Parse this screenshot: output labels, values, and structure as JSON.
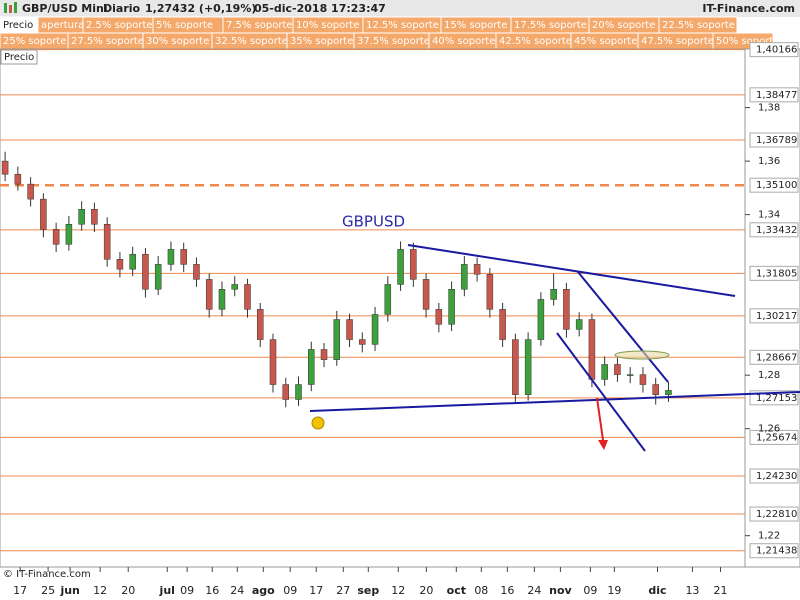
{
  "chart_data": {
    "type": "candlestick",
    "title": "GBP/USD Mini",
    "period": "Diario",
    "last_price": "1,27432 (+0,19%)",
    "datetime": "05-dic-2018 17:23:47",
    "site": "IT-Finance.com",
    "watermark": "© IT-Finance.com",
    "annotation": "GBPUSD",
    "price_tab": "Precio",
    "tabs": [
      [
        "Precio",
        "apertura",
        "2.5% soporte",
        "5% soporte",
        "7.5% soporte",
        "10% soporte",
        "12.5% soporte",
        "15% soporte",
        "17.5% soporte",
        "20% soporte",
        "22.5% soporte"
      ],
      [
        "25% soporte",
        "27.5% soporte",
        "30% soporte",
        "32.5% soporte",
        "35% soporte",
        "37.5% soporte",
        "40% soporte",
        "42.5% soporte",
        "45% soporte",
        "47.5% soporte",
        "50% soporte"
      ]
    ],
    "up_color": "#3ca03c",
    "down_color": "#c8584e",
    "level_color": "#ef8a4c",
    "ylim": [
      1.2083,
      1.4019
    ],
    "xlim": [
      -0.4,
      58.0
    ],
    "yticks": [
      {
        "value": 1.38,
        "label": "1,38"
      },
      {
        "value": 1.36,
        "label": "1,36"
      },
      {
        "value": 1.34,
        "label": "1,34"
      },
      {
        "value": 1.28,
        "label": "1,28"
      },
      {
        "value": 1.26,
        "label": "1,26"
      },
      {
        "value": 1.22,
        "label": "1,22"
      }
    ],
    "levels": [
      {
        "value": 1.40166,
        "label": "1,40166"
      },
      {
        "value": 1.38477,
        "label": "1,38477"
      },
      {
        "value": 1.36789,
        "label": "1,36789"
      },
      {
        "value": 1.351,
        "label": "1,35100",
        "dashed": true
      },
      {
        "value": 1.33432,
        "label": "1,33432"
      },
      {
        "value": 1.31805,
        "label": "1,31805"
      },
      {
        "value": 1.30217,
        "label": "1,30217"
      },
      {
        "value": 1.28667,
        "label": "1,28667"
      },
      {
        "value": 1.27153,
        "label": "1,27153"
      },
      {
        "value": 1.25674,
        "label": "1,25674"
      },
      {
        "value": 1.2423,
        "label": "1,24230"
      },
      {
        "value": 1.2281,
        "label": "1,22810"
      },
      {
        "value": 1.21438,
        "label": "1,21438"
      }
    ],
    "xticks": [
      {
        "value": 1.18,
        "label": "17"
      },
      {
        "value": 3.37,
        "label": "25"
      },
      {
        "value": 5.1,
        "label": "jun",
        "bold": true
      },
      {
        "value": 7.45,
        "label": "12"
      },
      {
        "value": 9.65,
        "label": "20"
      },
      {
        "value": 12.71,
        "label": "jul",
        "bold": true
      },
      {
        "value": 14.27,
        "label": "09"
      },
      {
        "value": 16.24,
        "label": "16"
      },
      {
        "value": 18.2,
        "label": "24"
      },
      {
        "value": 20.24,
        "label": "ago",
        "bold": true
      },
      {
        "value": 22.35,
        "label": "09"
      },
      {
        "value": 24.39,
        "label": "17"
      },
      {
        "value": 26.51,
        "label": "27"
      },
      {
        "value": 28.47,
        "label": "sep",
        "bold": true
      },
      {
        "value": 30.82,
        "label": "12"
      },
      {
        "value": 33.02,
        "label": "20"
      },
      {
        "value": 35.37,
        "label": "oct",
        "bold": true
      },
      {
        "value": 37.33,
        "label": "08"
      },
      {
        "value": 39.37,
        "label": "16"
      },
      {
        "value": 41.49,
        "label": "24"
      },
      {
        "value": 43.53,
        "label": "nov",
        "bold": true
      },
      {
        "value": 45.88,
        "label": "09"
      },
      {
        "value": 47.76,
        "label": "19"
      },
      {
        "value": 51.14,
        "label": "dic",
        "bold": true
      },
      {
        "value": 53.88,
        "label": "13"
      },
      {
        "value": 56.08,
        "label": "21"
      }
    ],
    "ohlc": [
      [
        1.36,
        1.3635,
        1.3525,
        1.3551
      ],
      [
        1.3551,
        1.358,
        1.349,
        1.3514
      ],
      [
        1.3514,
        1.354,
        1.343,
        1.3458
      ],
      [
        1.3458,
        1.348,
        1.3315,
        1.3345
      ],
      [
        1.3345,
        1.337,
        1.326,
        1.3289
      ],
      [
        1.3289,
        1.3395,
        1.3265,
        1.3364
      ],
      [
        1.3364,
        1.345,
        1.334,
        1.342
      ],
      [
        1.342,
        1.3445,
        1.3335,
        1.3364
      ],
      [
        1.3364,
        1.339,
        1.3205,
        1.3233
      ],
      [
        1.3233,
        1.326,
        1.3165,
        1.3196
      ],
      [
        1.3196,
        1.328,
        1.317,
        1.3252
      ],
      [
        1.3252,
        1.3275,
        1.309,
        1.3121
      ],
      [
        1.3121,
        1.3245,
        1.31,
        1.3214
      ],
      [
        1.3214,
        1.33,
        1.319,
        1.327
      ],
      [
        1.327,
        1.3295,
        1.3185,
        1.3214
      ],
      [
        1.3214,
        1.324,
        1.313,
        1.3158
      ],
      [
        1.3158,
        1.318,
        1.3015,
        1.3046
      ],
      [
        1.3046,
        1.315,
        1.302,
        1.3121
      ],
      [
        1.3121,
        1.317,
        1.3095,
        1.3139
      ],
      [
        1.3139,
        1.316,
        1.3015,
        1.3046
      ],
      [
        1.3046,
        1.307,
        1.2905,
        1.2933
      ],
      [
        1.2933,
        1.2955,
        1.2735,
        1.2765
      ],
      [
        1.2765,
        1.279,
        1.268,
        1.2709
      ],
      [
        1.2709,
        1.2795,
        1.2685,
        1.2765
      ],
      [
        1.2765,
        1.2925,
        1.274,
        1.2896
      ],
      [
        1.2896,
        1.292,
        1.283,
        1.2858
      ],
      [
        1.2858,
        1.304,
        1.2835,
        1.3008
      ],
      [
        1.3008,
        1.303,
        1.2905,
        1.2933
      ],
      [
        1.2933,
        1.296,
        1.2885,
        1.2915
      ],
      [
        1.2915,
        1.3055,
        1.289,
        1.3027
      ],
      [
        1.3027,
        1.317,
        1.3,
        1.3139
      ],
      [
        1.3139,
        1.33,
        1.3115,
        1.327
      ],
      [
        1.327,
        1.3295,
        1.313,
        1.3158
      ],
      [
        1.3158,
        1.318,
        1.3015,
        1.3046
      ],
      [
        1.3046,
        1.307,
        1.296,
        1.299
      ],
      [
        1.299,
        1.315,
        1.2965,
        1.3121
      ],
      [
        1.3121,
        1.3245,
        1.3095,
        1.3214
      ],
      [
        1.3214,
        1.324,
        1.315,
        1.3177
      ],
      [
        1.3177,
        1.32,
        1.3015,
        1.3046
      ],
      [
        1.3046,
        1.307,
        1.2905,
        1.2933
      ],
      [
        1.2933,
        1.2955,
        1.27,
        1.2727
      ],
      [
        1.2727,
        1.296,
        1.2705,
        1.2933
      ],
      [
        1.2933,
        1.311,
        1.291,
        1.3083
      ],
      [
        1.3083,
        1.318,
        1.306,
        1.3121
      ],
      [
        1.3121,
        1.3145,
        1.294,
        1.2971
      ],
      [
        1.2971,
        1.3035,
        1.2945,
        1.3008
      ],
      [
        1.3008,
        1.303,
        1.2755,
        1.2784
      ],
      [
        1.2784,
        1.287,
        1.276,
        1.284
      ],
      [
        1.284,
        1.2865,
        1.2775,
        1.2802
      ],
      [
        1.2802,
        1.283,
        1.277,
        1.2802
      ],
      [
        1.2802,
        1.283,
        1.2735,
        1.2765
      ],
      [
        1.2765,
        1.279,
        1.269,
        1.2727
      ],
      [
        1.2727,
        1.2775,
        1.27,
        1.27432
      ]
    ]
  }
}
